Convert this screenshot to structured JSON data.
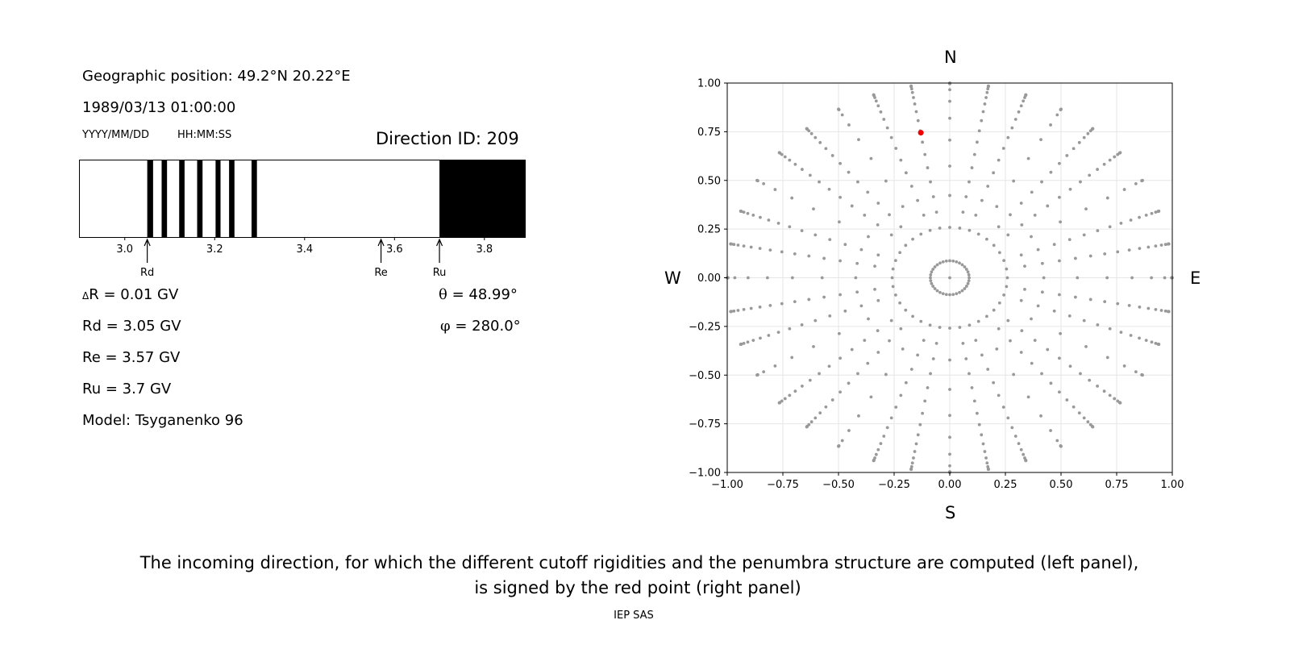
{
  "left_panel": {
    "position_text": "Geographic position: 49.2°N 20.22°E",
    "datetime_text": "1989/03/13 01:00:00",
    "date_format_label": "YYYY/MM/DD",
    "time_format_label": "HH:MM:SS",
    "direction_id_text": "Direction ID: 209",
    "delta_r_symbol": "Δ",
    "delta_r_text": "R = 0.01 GV",
    "rd_text": "Rd = 3.05 GV",
    "re_text": "Re = 3.57 GV",
    "ru_text": "Ru = 3.7 GV",
    "model_text": "Model: Tsyganenko 96",
    "theta_symbol": "θ",
    "theta_text": "= 48.99°",
    "phi_symbol": "φ",
    "phi_text": "= 280.0°"
  },
  "caption": {
    "line1": "The incoming direction, for which the different cutoff rigidities and the penumbra structure are computed (left panel),",
    "line2": "is signed by the red point (right panel)",
    "credit": "IEP SAS"
  },
  "chart_data": [
    {
      "type": "penumbra_bar",
      "xlim": [
        2.9,
        3.89
      ],
      "xticks": [
        3.0,
        3.2,
        3.4,
        3.6,
        3.8
      ],
      "xtick_labels": [
        "3.0",
        "3.2",
        "3.4",
        "3.6",
        "3.8"
      ],
      "forbidden_bands": [
        [
          3.05,
          3.063
        ],
        [
          3.082,
          3.094
        ],
        [
          3.121,
          3.133
        ],
        [
          3.161,
          3.173
        ],
        [
          3.202,
          3.213
        ],
        [
          3.232,
          3.244
        ],
        [
          3.282,
          3.294
        ],
        [
          3.7,
          3.89
        ]
      ],
      "markers": [
        {
          "label": "Rd",
          "value": 3.05
        },
        {
          "label": "Re",
          "value": 3.57
        },
        {
          "label": "Ru",
          "value": 3.7
        }
      ]
    },
    {
      "type": "scatter",
      "xlim": [
        -1.0,
        1.0
      ],
      "ylim": [
        -1.0,
        1.0
      ],
      "xticks": [
        -1.0,
        -0.75,
        -0.5,
        -0.25,
        0.0,
        0.25,
        0.5,
        0.75,
        1.0
      ],
      "xtick_labels": [
        "−1.00",
        "−0.75",
        "−0.50",
        "−0.25",
        "0.00",
        "0.25",
        "0.50",
        "0.75",
        "1.00"
      ],
      "yticks": [
        -1.0,
        -0.75,
        -0.5,
        -0.25,
        0.0,
        0.25,
        0.5,
        0.75,
        1.0
      ],
      "ytick_labels": [
        "−1.00",
        "−0.75",
        "−0.50",
        "−0.25",
        "0.00",
        "0.25",
        "0.50",
        "0.75",
        "1.00"
      ],
      "grid": true,
      "compass": {
        "N": "N",
        "S": "S",
        "E": "E",
        "W": "W"
      },
      "directions_grid": {
        "azimuths_deg_step": 10,
        "zenith_deg": [
          5,
          15,
          25,
          35,
          45,
          55,
          65,
          75,
          85
        ],
        "zenith_deg_diagonal": [
          5,
          15,
          20,
          25,
          30,
          35,
          40,
          45,
          50,
          55,
          60,
          65,
          70,
          75,
          80,
          85
        ],
        "projection": "sin(zenith)"
      },
      "highlight_point": {
        "x": -0.13,
        "y": 0.745,
        "theta_deg": 48.99,
        "phi_deg": 280.0
      },
      "colors": {
        "grid_points": "#999999",
        "highlight": "#ee0000"
      }
    }
  ]
}
